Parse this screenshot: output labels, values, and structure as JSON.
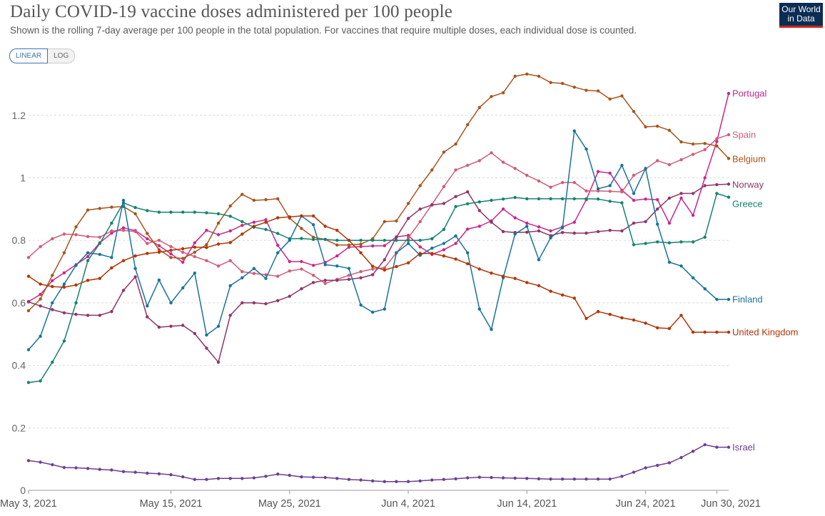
{
  "header": {
    "title": "Daily COVID-19 vaccine doses administered per 100 people",
    "subtitle": "Shown is the rolling 7-day average per 100 people in the total population. For vaccines that require multiple doses, each individual dose is counted."
  },
  "logo": {
    "line1": "Our World",
    "line2": "in Data",
    "bg": "#0b2d53",
    "accent": "#ce261e"
  },
  "scale_toggle": {
    "linear_label": "LINEAR",
    "log_label": "LOG",
    "selected": "LINEAR"
  },
  "chart_data": {
    "type": "line",
    "title": "Daily COVID-19 vaccine doses administered per 100 people",
    "ylim": [
      0,
      1.35
    ],
    "yticks": [
      0,
      0.2,
      0.4,
      0.6,
      0.8,
      1,
      1.2
    ],
    "ytick_labels": [
      "0",
      "0.2",
      "0.4",
      "0.6",
      "0.8",
      "1",
      "1.2"
    ],
    "xticks": [
      "May 3, 2021",
      "May 15, 2021",
      "May 25, 2021",
      "Jun 4, 2021",
      "Jun 14, 2021",
      "Jun 24, 2021",
      "Jun 30, 2021"
    ],
    "xtick_day_index": [
      0,
      12,
      22,
      32,
      42,
      52,
      58
    ],
    "x_start": "2021-05-03",
    "x_end": "2021-06-30",
    "grid": true,
    "legend": "line-end labels",
    "series": [
      {
        "name": "Portugal",
        "color": "#c7288a",
        "values": [
          0.604,
          0.627,
          0.671,
          0.696,
          0.722,
          0.748,
          0.792,
          0.823,
          0.84,
          0.831,
          0.805,
          0.783,
          0.757,
          0.73,
          0.792,
          0.832,
          0.818,
          0.83,
          0.848,
          0.858,
          0.866,
          0.784,
          0.732,
          0.732,
          0.72,
          0.729,
          0.75,
          0.778,
          0.78,
          0.782,
          0.783,
          0.811,
          0.816,
          0.779,
          0.755,
          0.77,
          0.79,
          0.836,
          0.845,
          0.862,
          0.9,
          0.872,
          0.855,
          0.843,
          0.83,
          0.843,
          0.858,
          0.93,
          1.02,
          1.015,
          0.96,
          0.928,
          0.932,
          0.93,
          0.855,
          0.935,
          0.88,
          1.0,
          1.116,
          1.27
        ]
      },
      {
        "name": "Spain",
        "color": "#cf5d78",
        "values": [
          0.745,
          0.78,
          0.805,
          0.82,
          0.818,
          0.812,
          0.81,
          0.83,
          0.832,
          0.828,
          0.79,
          0.8,
          0.78,
          0.762,
          0.748,
          0.735,
          0.718,
          0.735,
          0.7,
          0.694,
          0.69,
          0.685,
          0.702,
          0.708,
          0.688,
          0.662,
          0.675,
          0.688,
          0.7,
          0.708,
          0.712,
          0.76,
          0.808,
          0.86,
          0.915,
          0.972,
          1.025,
          1.04,
          1.055,
          1.08,
          1.05,
          1.03,
          1.008,
          0.99,
          0.97,
          0.985,
          0.985,
          0.958,
          0.958,
          0.957,
          0.955,
          1.008,
          1.028,
          1.055,
          1.042,
          1.058,
          1.075,
          1.09,
          1.125,
          1.138
        ]
      },
      {
        "name": "Belgium",
        "color": "#a8541c",
        "values": [
          0.575,
          0.612,
          0.688,
          0.76,
          0.843,
          0.897,
          0.902,
          0.906,
          0.908,
          0.885,
          0.822,
          0.77,
          0.745,
          0.742,
          0.762,
          0.786,
          0.855,
          0.91,
          0.947,
          0.928,
          0.93,
          0.933,
          0.871,
          0.838,
          0.81,
          0.803,
          0.785,
          0.785,
          0.788,
          0.805,
          0.86,
          0.862,
          0.918,
          0.975,
          1.025,
          1.082,
          1.108,
          1.17,
          1.225,
          1.26,
          1.272,
          1.325,
          1.332,
          1.325,
          1.305,
          1.302,
          1.29,
          1.28,
          1.278,
          1.252,
          1.262,
          1.212,
          1.163,
          1.165,
          1.152,
          1.115,
          1.108,
          1.11,
          1.102,
          1.062
        ]
      },
      {
        "name": "Norway",
        "color": "#8f3567",
        "values": [
          0.603,
          0.59,
          0.578,
          0.568,
          0.563,
          0.56,
          0.56,
          0.572,
          0.64,
          0.683,
          0.555,
          0.522,
          0.525,
          0.528,
          0.502,
          0.455,
          0.41,
          0.56,
          0.6,
          0.6,
          0.597,
          0.607,
          0.621,
          0.645,
          0.665,
          0.672,
          0.672,
          0.675,
          0.68,
          0.69,
          0.738,
          0.81,
          0.87,
          0.9,
          0.913,
          0.918,
          0.94,
          0.955,
          0.895,
          0.858,
          0.828,
          0.825,
          0.826,
          0.83,
          0.815,
          0.825,
          0.823,
          0.823,
          0.828,
          0.832,
          0.83,
          0.855,
          0.86,
          0.9,
          0.935,
          0.95,
          0.95,
          0.975,
          0.978,
          0.98
        ]
      },
      {
        "name": "Greece",
        "color": "#13846d",
        "values": [
          0.345,
          0.35,
          0.41,
          0.478,
          0.6,
          0.735,
          0.79,
          0.855,
          0.92,
          0.905,
          0.895,
          0.89,
          0.89,
          0.89,
          0.89,
          0.888,
          0.885,
          0.877,
          0.86,
          0.842,
          0.835,
          0.822,
          0.805,
          0.806,
          0.803,
          0.803,
          0.8,
          0.8,
          0.8,
          0.8,
          0.8,
          0.8,
          0.8,
          0.8,
          0.805,
          0.835,
          0.908,
          0.917,
          0.923,
          0.928,
          0.932,
          0.937,
          0.933,
          0.933,
          0.933,
          0.933,
          0.933,
          0.933,
          0.932,
          0.925,
          0.92,
          0.786,
          0.79,
          0.795,
          0.792,
          0.795,
          0.795,
          0.81,
          0.95,
          0.938
        ]
      },
      {
        "name": "Finland",
        "color": "#18739b",
        "values": [
          0.45,
          0.493,
          0.6,
          0.66,
          0.72,
          0.76,
          0.755,
          0.745,
          0.928,
          0.71,
          0.59,
          0.673,
          0.6,
          0.648,
          0.695,
          0.497,
          0.525,
          0.655,
          0.68,
          0.71,
          0.678,
          0.76,
          0.8,
          0.878,
          0.85,
          0.722,
          0.718,
          0.71,
          0.593,
          0.57,
          0.58,
          0.76,
          0.79,
          0.752,
          0.775,
          0.79,
          0.814,
          0.76,
          0.58,
          0.515,
          0.68,
          0.82,
          0.845,
          0.738,
          0.808,
          0.84,
          1.15,
          1.092,
          0.965,
          0.975,
          1.04,
          0.95,
          1.03,
          0.852,
          0.73,
          0.718,
          0.68,
          0.645,
          0.611,
          0.611
        ]
      },
      {
        "name": "United Kingdom",
        "color": "#b13507",
        "values": [
          0.685,
          0.66,
          0.652,
          0.65,
          0.657,
          0.672,
          0.678,
          0.712,
          0.735,
          0.75,
          0.758,
          0.762,
          0.768,
          0.773,
          0.778,
          0.777,
          0.788,
          0.793,
          0.82,
          0.845,
          0.858,
          0.872,
          0.875,
          0.878,
          0.878,
          0.845,
          0.832,
          0.8,
          0.76,
          0.717,
          0.705,
          0.716,
          0.728,
          0.758,
          0.758,
          0.75,
          0.74,
          0.725,
          0.708,
          0.695,
          0.685,
          0.678,
          0.665,
          0.655,
          0.637,
          0.625,
          0.615,
          0.55,
          0.572,
          0.563,
          0.552,
          0.545,
          0.535,
          0.52,
          0.518,
          0.56,
          0.506,
          0.506,
          0.506,
          0.506
        ]
      },
      {
        "name": "Israel",
        "color": "#6d3e91",
        "values": [
          0.095,
          0.09,
          0.082,
          0.073,
          0.072,
          0.07,
          0.067,
          0.065,
          0.06,
          0.058,
          0.055,
          0.053,
          0.05,
          0.043,
          0.035,
          0.035,
          0.038,
          0.038,
          0.038,
          0.04,
          0.045,
          0.052,
          0.048,
          0.043,
          0.042,
          0.041,
          0.038,
          0.035,
          0.033,
          0.03,
          0.028,
          0.028,
          0.028,
          0.03,
          0.033,
          0.035,
          0.037,
          0.04,
          0.042,
          0.041,
          0.04,
          0.039,
          0.038,
          0.037,
          0.036,
          0.036,
          0.036,
          0.036,
          0.036,
          0.036,
          0.045,
          0.058,
          0.072,
          0.08,
          0.088,
          0.105,
          0.125,
          0.146,
          0.138,
          0.138
        ]
      }
    ],
    "label_positions": {
      "Portugal": 1.27,
      "Spain": 1.138,
      "Belgium": 1.06,
      "Norway": 0.978,
      "Greece": 0.917,
      "Finland": 0.611,
      "United Kingdom": 0.506,
      "Israel": 0.138
    }
  }
}
